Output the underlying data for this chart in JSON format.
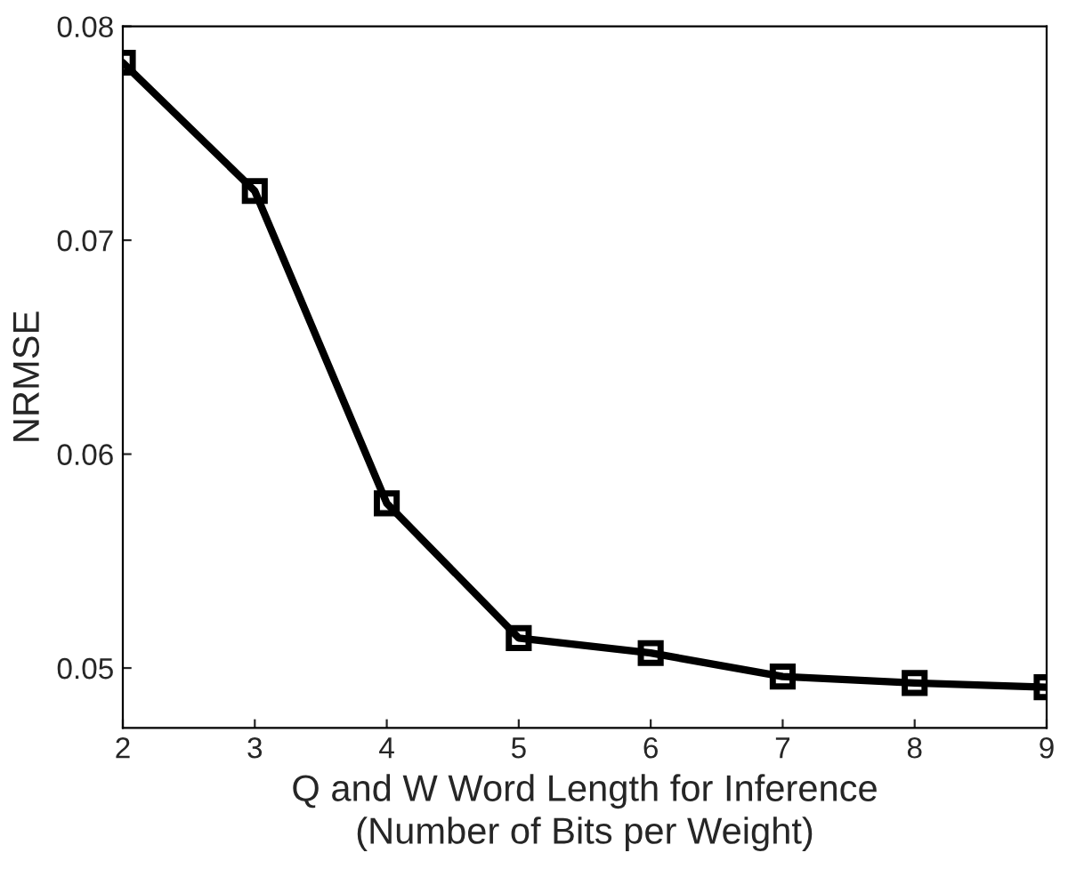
{
  "chart_data": {
    "type": "line",
    "xlabel": "Q and W Word Length for Inference\n(Number of Bits per Weight)",
    "ylabel": "NRMSE",
    "x": [
      2,
      3,
      4,
      5,
      6,
      7,
      8,
      9
    ],
    "series": [
      {
        "color": "#000000",
        "values": [
          0.0783,
          0.0723,
          0.0577,
          0.0514,
          0.0507,
          0.0496,
          0.0493,
          0.0491
        ]
      }
    ],
    "xlim": [
      2,
      9
    ],
    "xticks": [
      2,
      3,
      4,
      5,
      6,
      7,
      8,
      9
    ],
    "ylim": [
      0.0472,
      0.08
    ],
    "yticks": [
      0.05,
      0.06,
      0.07,
      0.08
    ],
    "marker": "square",
    "line_style": "solid",
    "grid": false,
    "legend": false
  }
}
